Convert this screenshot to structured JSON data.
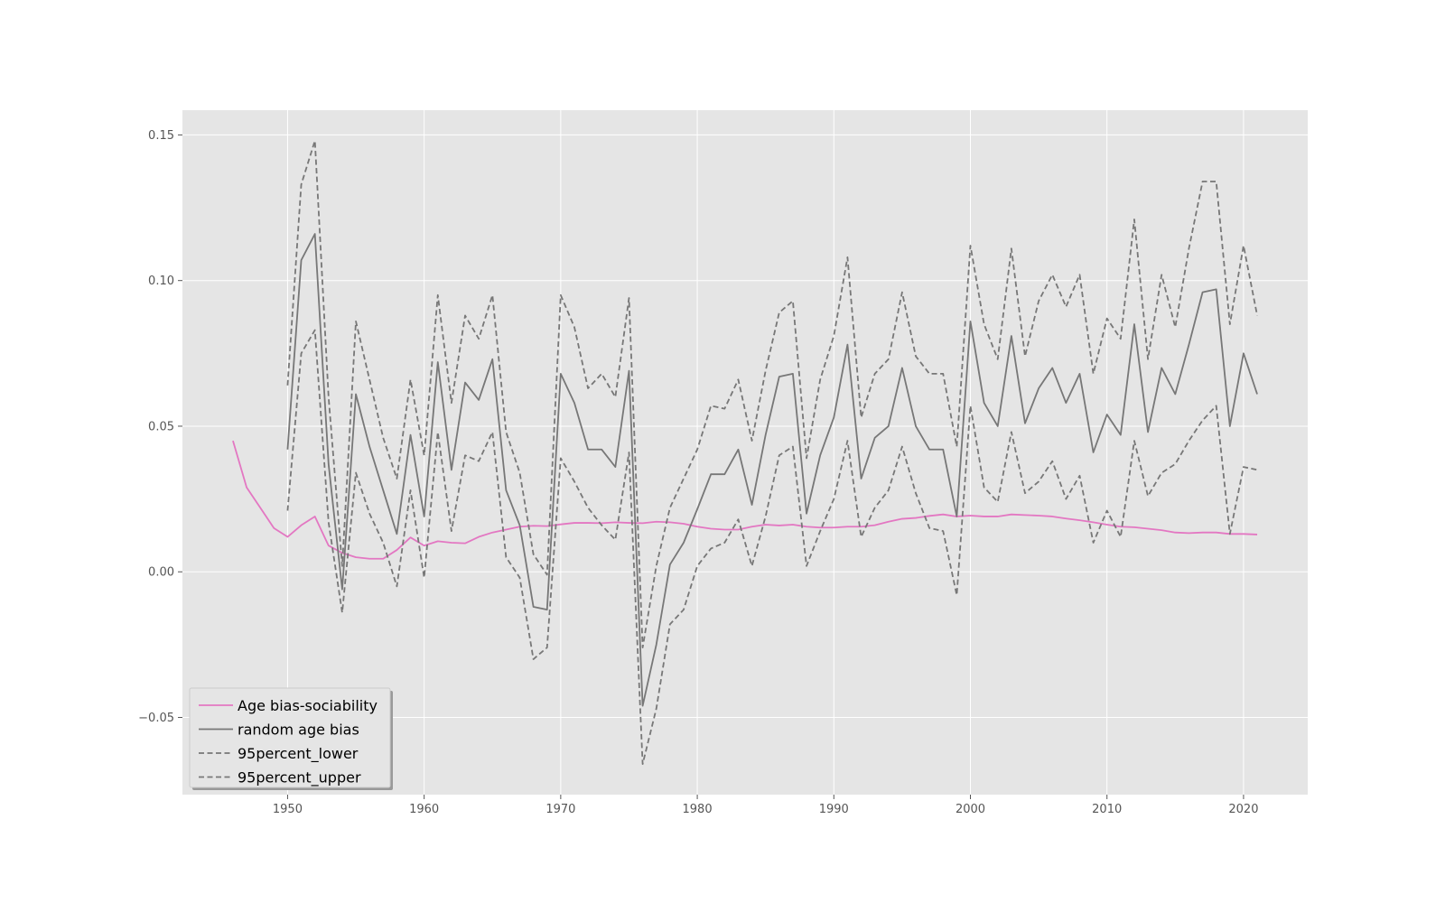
{
  "chart_data": {
    "type": "line",
    "title": "",
    "xlabel": "",
    "ylabel": "",
    "xlim": [
      1942.3,
      2024.7
    ],
    "ylim": [
      -0.0765,
      0.1585
    ],
    "xticks": [
      1950,
      1960,
      1970,
      1980,
      1990,
      2000,
      2010,
      2020
    ],
    "yticks": [
      -0.05,
      0.0,
      0.05,
      0.1,
      0.15
    ],
    "ytick_labels": [
      "−0.05",
      "0.00",
      "0.05",
      "0.10",
      "0.15"
    ],
    "grid": true,
    "background": "#e5e5e5",
    "legend_position": "lower-left",
    "series": [
      {
        "name": "Age bias-sociability",
        "color": "#e377c2",
        "style": "solid",
        "x": [
          1946,
          1947,
          1948,
          1949,
          1950,
          1951,
          1952,
          1953,
          1954,
          1955,
          1956,
          1957,
          1958,
          1959,
          1960,
          1961,
          1962,
          1963,
          1964,
          1965,
          1966,
          1967,
          1968,
          1969,
          1970,
          1971,
          1972,
          1973,
          1974,
          1975,
          1976,
          1977,
          1978,
          1979,
          1980,
          1981,
          1982,
          1983,
          1984,
          1985,
          1986,
          1987,
          1988,
          1989,
          1990,
          1991,
          1992,
          1993,
          1994,
          1995,
          1996,
          1997,
          1998,
          1999,
          2000,
          2001,
          2002,
          2003,
          2004,
          2005,
          2006,
          2007,
          2008,
          2009,
          2010,
          2011,
          2012,
          2013,
          2014,
          2015,
          2016,
          2017,
          2018,
          2019,
          2020,
          2021
        ],
        "y": [
          0.045,
          0.029,
          0.022,
          0.015,
          0.012,
          0.016,
          0.019,
          0.009,
          0.0065,
          0.005,
          0.0045,
          0.0045,
          0.0075,
          0.0118,
          0.009,
          0.0105,
          0.01,
          0.0098,
          0.012,
          0.0135,
          0.0145,
          0.0155,
          0.0158,
          0.0157,
          0.0163,
          0.0168,
          0.0168,
          0.0167,
          0.017,
          0.0168,
          0.0167,
          0.0172,
          0.017,
          0.0165,
          0.0155,
          0.0148,
          0.0145,
          0.0145,
          0.0155,
          0.0162,
          0.0159,
          0.0162,
          0.0155,
          0.0152,
          0.0152,
          0.0155,
          0.0155,
          0.016,
          0.0172,
          0.0182,
          0.0185,
          0.0192,
          0.0197,
          0.019,
          0.0193,
          0.019,
          0.019,
          0.0197,
          0.0195,
          0.0193,
          0.019,
          0.0183,
          0.0177,
          0.017,
          0.0162,
          0.0155,
          0.0153,
          0.0148,
          0.0143,
          0.0135,
          0.0133,
          0.0135,
          0.0135,
          0.013,
          0.013,
          0.0128
        ]
      },
      {
        "name": "random age bias",
        "color": "#777777",
        "style": "solid",
        "x": [
          1950,
          1951,
          1952,
          1953,
          1954,
          1955,
          1956,
          1957,
          1958,
          1959,
          1960,
          1961,
          1962,
          1963,
          1964,
          1965,
          1966,
          1967,
          1968,
          1969,
          1970,
          1971,
          1972,
          1973,
          1974,
          1975,
          1976,
          1977,
          1978,
          1979,
          1980,
          1981,
          1982,
          1983,
          1984,
          1985,
          1986,
          1987,
          1988,
          1989,
          1990,
          1991,
          1992,
          1993,
          1994,
          1995,
          1996,
          1997,
          1998,
          1999,
          2000,
          2001,
          2002,
          2003,
          2004,
          2005,
          2006,
          2007,
          2008,
          2009,
          2010,
          2011,
          2012,
          2013,
          2014,
          2015,
          2016,
          2017,
          2018,
          2019,
          2020,
          2021
        ],
        "y": [
          0.042,
          0.107,
          0.116,
          0.037,
          -0.006,
          0.061,
          0.043,
          0.028,
          0.013,
          0.047,
          0.019,
          0.072,
          0.035,
          0.065,
          0.059,
          0.073,
          0.028,
          0.016,
          -0.012,
          -0.013,
          0.068,
          0.058,
          0.042,
          0.042,
          0.036,
          0.069,
          -0.046,
          -0.025,
          0.0025,
          0.01,
          0.0215,
          0.0335,
          0.0335,
          0.042,
          0.023,
          0.047,
          0.067,
          0.068,
          0.02,
          0.04,
          0.053,
          0.078,
          0.032,
          0.046,
          0.05,
          0.07,
          0.05,
          0.042,
          0.042,
          0.019,
          0.086,
          0.058,
          0.05,
          0.081,
          0.051,
          0.063,
          0.07,
          0.058,
          0.068,
          0.041,
          0.054,
          0.047,
          0.085,
          0.048,
          0.07,
          0.061,
          0.078,
          0.096,
          0.097,
          0.05,
          0.075,
          0.061
        ]
      },
      {
        "name": "95percent_lower",
        "color": "#777777",
        "style": "dashed",
        "x": [
          1950,
          1951,
          1952,
          1953,
          1954,
          1955,
          1956,
          1957,
          1958,
          1959,
          1960,
          1961,
          1962,
          1963,
          1964,
          1965,
          1966,
          1967,
          1968,
          1969,
          1970,
          1971,
          1972,
          1973,
          1974,
          1975,
          1976,
          1977,
          1978,
          1979,
          1980,
          1981,
          1982,
          1983,
          1984,
          1985,
          1986,
          1987,
          1988,
          1989,
          1990,
          1991,
          1992,
          1993,
          1994,
          1995,
          1996,
          1997,
          1998,
          1999,
          2000,
          2001,
          2002,
          2003,
          2004,
          2005,
          2006,
          2007,
          2008,
          2009,
          2010,
          2011,
          2012,
          2013,
          2014,
          2015,
          2016,
          2017,
          2018,
          2019,
          2020,
          2021
        ],
        "y": [
          0.021,
          0.075,
          0.083,
          0.017,
          -0.014,
          0.034,
          0.02,
          0.01,
          -0.005,
          0.028,
          -0.002,
          0.048,
          0.014,
          0.04,
          0.038,
          0.048,
          0.005,
          -0.002,
          -0.03,
          -0.026,
          0.039,
          0.031,
          0.022,
          0.016,
          0.011,
          0.041,
          -0.066,
          -0.047,
          -0.018,
          -0.013,
          0.002,
          0.008,
          0.01,
          0.018,
          0.002,
          0.019,
          0.04,
          0.043,
          0.002,
          0.014,
          0.025,
          0.045,
          0.012,
          0.022,
          0.028,
          0.043,
          0.027,
          0.015,
          0.014,
          -0.008,
          0.057,
          0.029,
          0.024,
          0.048,
          0.027,
          0.031,
          0.038,
          0.025,
          0.033,
          0.01,
          0.021,
          0.012,
          0.045,
          0.026,
          0.034,
          0.037,
          0.045,
          0.052,
          0.057,
          0.013,
          0.036,
          0.035
        ]
      },
      {
        "name": "95percent_upper",
        "color": "#777777",
        "style": "dashed",
        "x": [
          1950,
          1951,
          1952,
          1953,
          1954,
          1955,
          1956,
          1957,
          1958,
          1959,
          1960,
          1961,
          1962,
          1963,
          1964,
          1965,
          1966,
          1967,
          1968,
          1969,
          1970,
          1971,
          1972,
          1973,
          1974,
          1975,
          1976,
          1977,
          1978,
          1979,
          1980,
          1981,
          1982,
          1983,
          1984,
          1985,
          1986,
          1987,
          1988,
          1989,
          1990,
          1991,
          1992,
          1993,
          1994,
          1995,
          1996,
          1997,
          1998,
          1999,
          2000,
          2001,
          2002,
          2003,
          2004,
          2005,
          2006,
          2007,
          2008,
          2009,
          2010,
          2011,
          2012,
          2013,
          2014,
          2015,
          2016,
          2017,
          2018,
          2019,
          2020,
          2021
        ],
        "y": [
          0.064,
          0.133,
          0.148,
          0.06,
          0.002,
          0.086,
          0.066,
          0.046,
          0.032,
          0.066,
          0.04,
          0.095,
          0.058,
          0.088,
          0.08,
          0.095,
          0.048,
          0.034,
          0.006,
          -0.001,
          0.095,
          0.084,
          0.063,
          0.068,
          0.06,
          0.094,
          -0.026,
          0.002,
          0.022,
          0.032,
          0.042,
          0.057,
          0.056,
          0.066,
          0.045,
          0.069,
          0.089,
          0.093,
          0.039,
          0.066,
          0.081,
          0.108,
          0.053,
          0.068,
          0.073,
          0.096,
          0.074,
          0.068,
          0.068,
          0.043,
          0.112,
          0.085,
          0.073,
          0.111,
          0.074,
          0.093,
          0.102,
          0.091,
          0.102,
          0.068,
          0.087,
          0.08,
          0.121,
          0.073,
          0.102,
          0.084,
          0.111,
          0.134,
          0.134,
          0.085,
          0.112,
          0.088
        ]
      }
    ]
  }
}
